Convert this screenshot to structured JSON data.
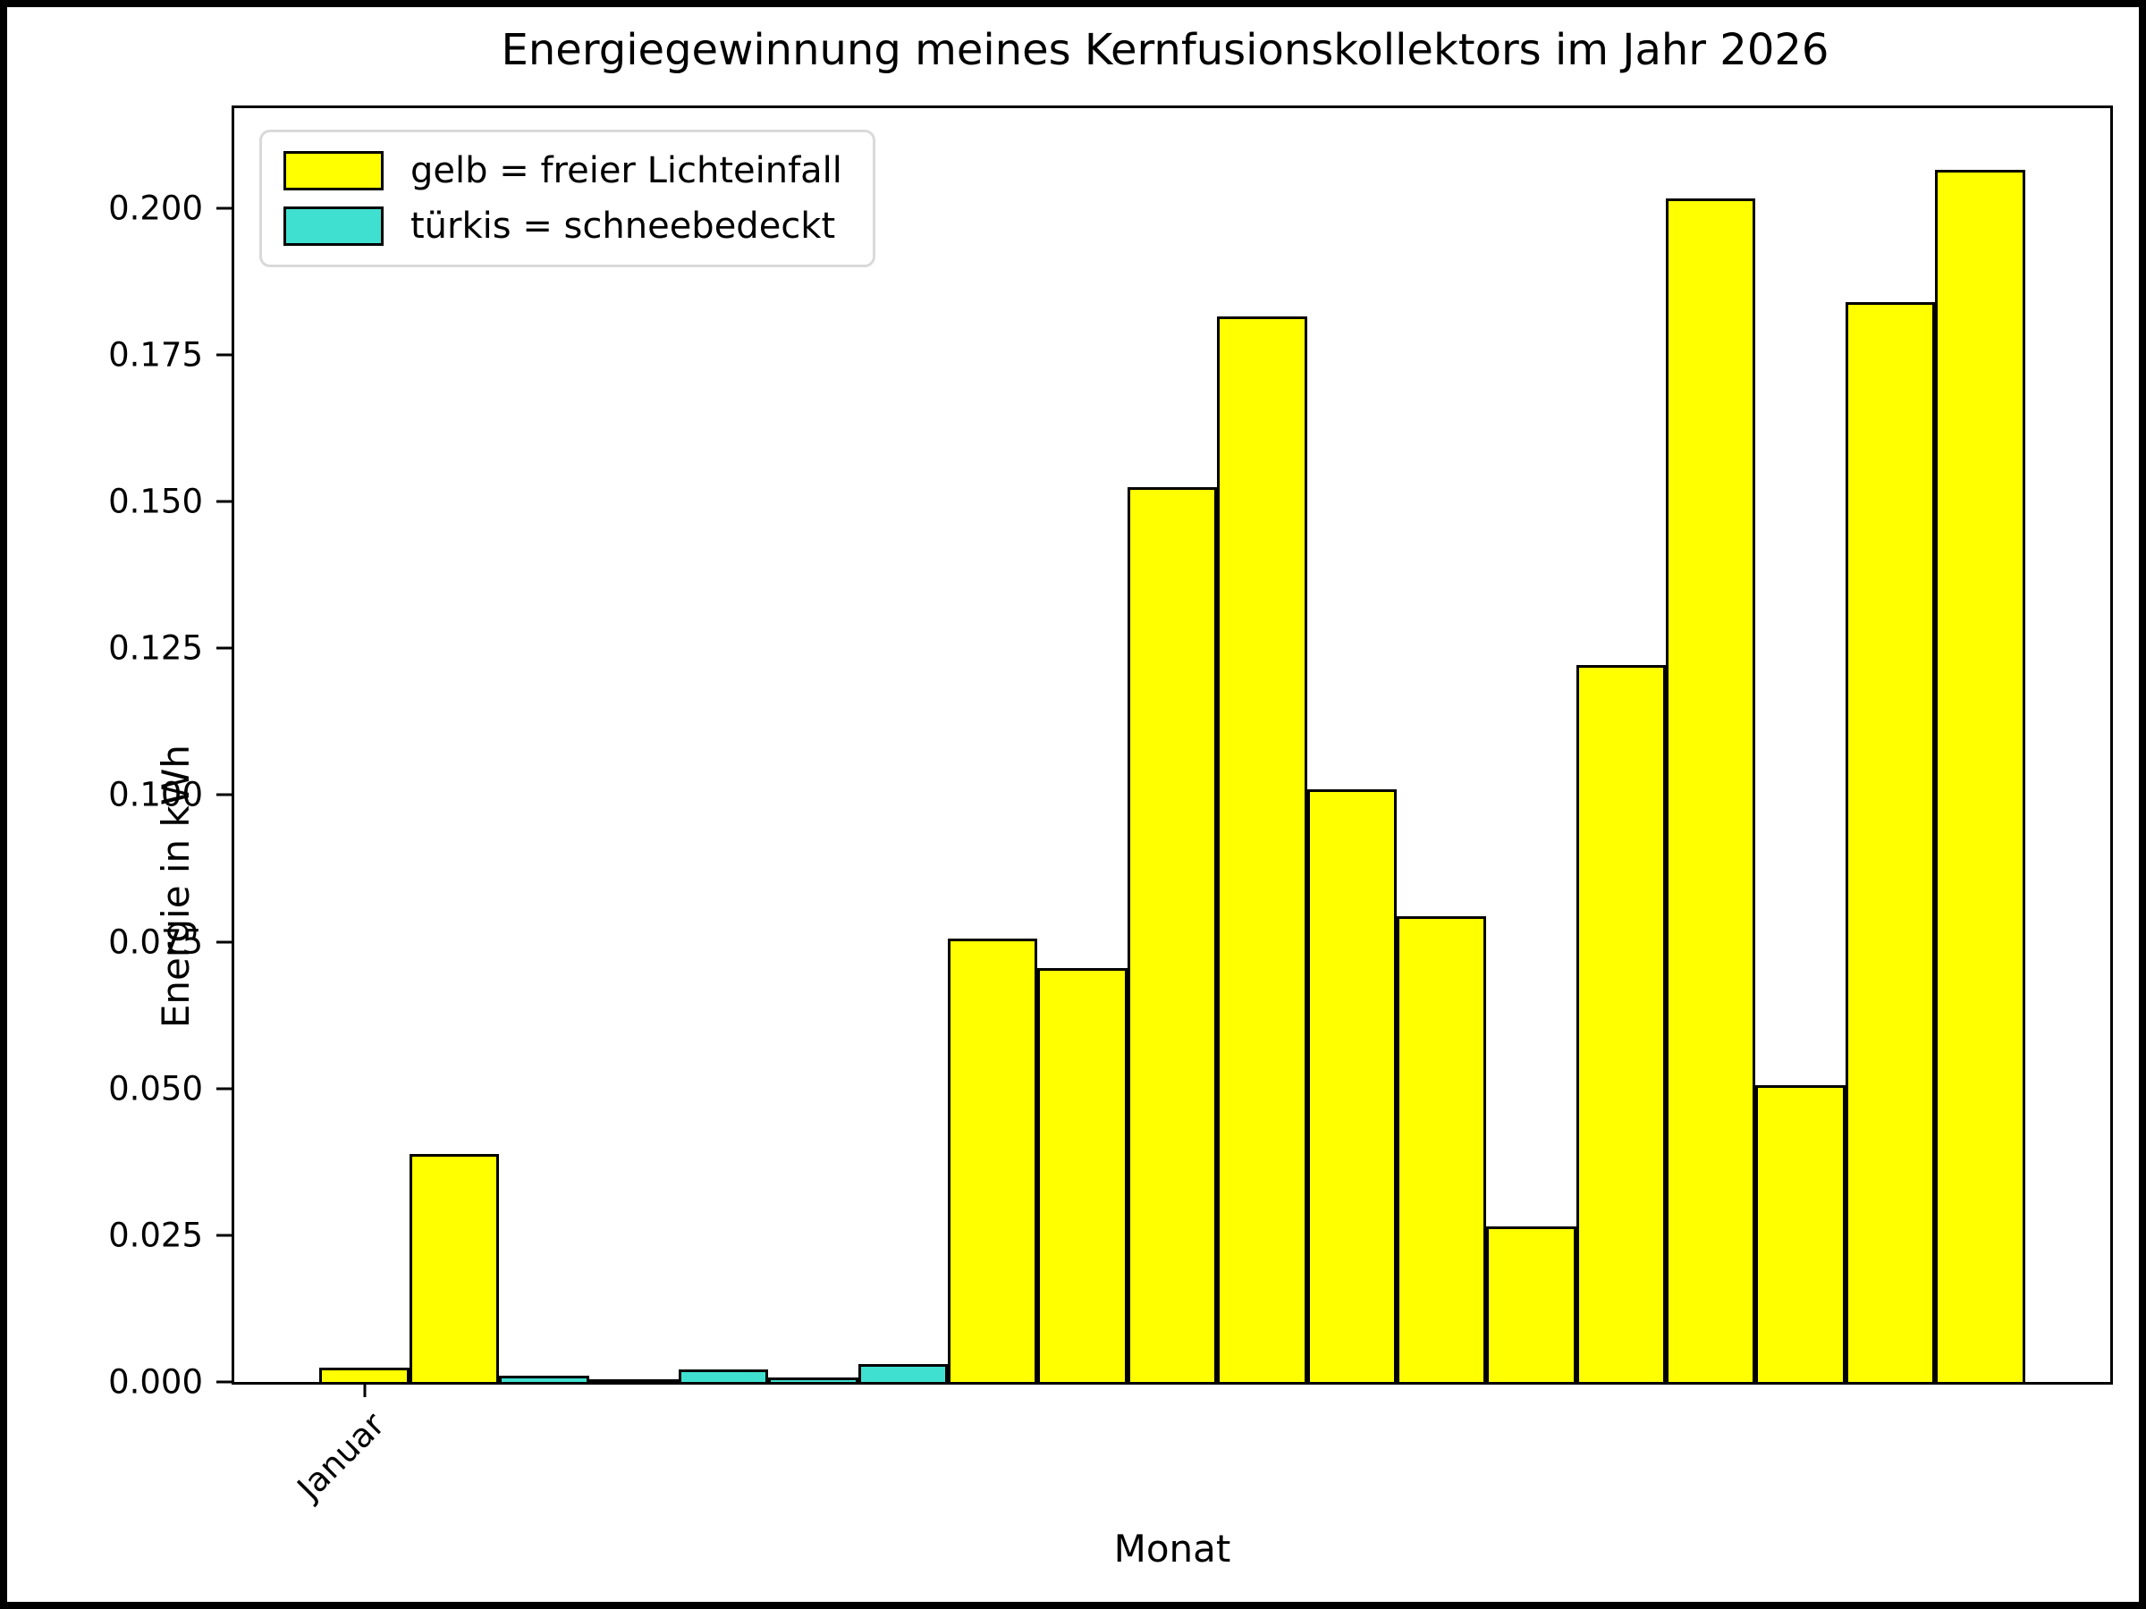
{
  "figure": {
    "title": "Energiegewinnung meines Kernfusionskollektors im Jahr 2026",
    "xlabel": "Monat",
    "ylabel": "Energie in kWh"
  },
  "legend": {
    "position": "upper left",
    "items": [
      {
        "name": "free-light",
        "label": "gelb = freier Lichteinfall",
        "color": "#ffff00"
      },
      {
        "name": "snow-covered",
        "label": "türkis = schneebedeckt",
        "color": "#40e0d0"
      }
    ]
  },
  "chart_data": {
    "type": "bar",
    "title": "Energiegewinnung meines Kernfusionskollektors im Jahr 2026",
    "xlabel": "Monat",
    "ylabel": "Energie in kWh",
    "ylim": [
      0,
      0.217
    ],
    "grid": false,
    "legend_position": "upper left",
    "colors": {
      "yellow": "#ffff00",
      "turquoise": "#40e0d0",
      "edge": "#000000"
    },
    "yticks": [
      {
        "label": "0.000",
        "value": 0.0
      },
      {
        "label": "0.025",
        "value": 0.025
      },
      {
        "label": "0.050",
        "value": 0.05
      },
      {
        "label": "0.075",
        "value": 0.075
      },
      {
        "label": "0.100",
        "value": 0.1
      },
      {
        "label": "0.125",
        "value": 0.125
      },
      {
        "label": "0.150",
        "value": 0.15
      },
      {
        "label": "0.175",
        "value": 0.175
      },
      {
        "label": "0.200",
        "value": 0.2
      }
    ],
    "x_axis": {
      "margin_units": 0.95,
      "bar_width_units": 1.0,
      "total_units": 20.9
    },
    "xticks": [
      {
        "bar_index": 0,
        "label": "Januar",
        "rotation_deg": 45
      }
    ],
    "bars": [
      {
        "value": 0.0024,
        "color": "yellow"
      },
      {
        "value": 0.0388,
        "color": "yellow"
      },
      {
        "value": 0.001,
        "color": "turquoise"
      },
      {
        "value": 0.0003,
        "color": "turquoise"
      },
      {
        "value": 0.0022,
        "color": "turquoise"
      },
      {
        "value": 0.0008,
        "color": "turquoise"
      },
      {
        "value": 0.0031,
        "color": "turquoise"
      },
      {
        "value": 0.0756,
        "color": "yellow"
      },
      {
        "value": 0.0705,
        "color": "yellow"
      },
      {
        "value": 0.1525,
        "color": "yellow"
      },
      {
        "value": 0.1815,
        "color": "yellow"
      },
      {
        "value": 0.101,
        "color": "yellow"
      },
      {
        "value": 0.0793,
        "color": "yellow"
      },
      {
        "value": 0.0265,
        "color": "yellow"
      },
      {
        "value": 0.1221,
        "color": "yellow"
      },
      {
        "value": 0.2016,
        "color": "yellow"
      },
      {
        "value": 0.0506,
        "color": "yellow"
      },
      {
        "value": 0.1839,
        "color": "yellow"
      },
      {
        "value": 0.2065,
        "color": "yellow"
      }
    ]
  }
}
